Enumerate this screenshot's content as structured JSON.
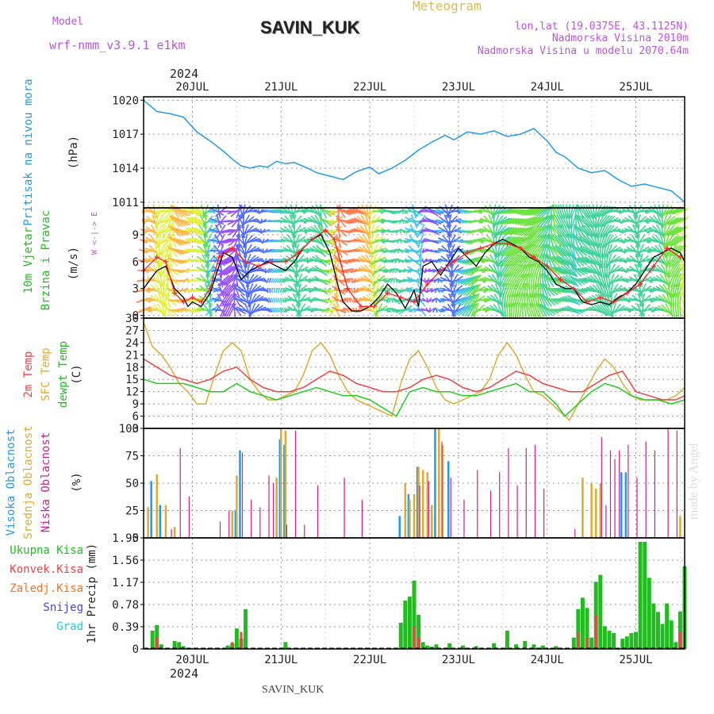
{
  "header": {
    "meteogram_label": "Meteogram",
    "station_name": "SAVIN_KUK",
    "model_label": "Model",
    "model_name": "wrf-nmm_v3.9.1 e1km",
    "lonlat": "lon,lat (19.0375E, 43.1125N)",
    "elevation": "Nadmorska Visina 2010m",
    "model_elevation": "Nadmorska Visina u modelu 2070.64m",
    "footer_station": "SAVIN_KUK",
    "credit": "made by Angel",
    "year": "2024"
  },
  "chart_data": [
    {
      "type": "line",
      "id": "pressure",
      "ylabel": "Pritisak na nivou mora",
      "unit": "(hPa)",
      "yticks": [
        1011,
        1014,
        1017,
        1020
      ],
      "ylim": [
        1010.5,
        1020.3
      ],
      "x_days": [
        "20JUL",
        "21JUL",
        "22JUL",
        "23JUL",
        "24JUL",
        "25JUL"
      ],
      "x_range_days": [
        -0.55,
        5.55
      ],
      "series": [
        {
          "color": "#2299ee",
          "x": [
            -0.55,
            -0.4,
            -0.25,
            -0.1,
            0.05,
            0.2,
            0.35,
            0.45,
            0.55,
            0.65,
            0.75,
            0.85,
            0.95,
            1.05,
            1.15,
            1.3,
            1.4,
            1.55,
            1.7,
            1.85,
            2.0,
            2.1,
            2.25,
            2.4,
            2.55,
            2.7,
            2.85,
            2.95,
            3.1,
            3.25,
            3.4,
            3.55,
            3.7,
            3.85,
            4.0,
            4.1,
            4.2,
            4.35,
            4.5,
            4.65,
            4.8,
            4.95,
            5.1,
            5.25,
            5.4,
            5.55
          ],
          "values": [
            1020.0,
            1019.0,
            1018.8,
            1018.5,
            1017.2,
            1016.4,
            1015.5,
            1014.8,
            1014.2,
            1014.0,
            1014.2,
            1014.1,
            1014.6,
            1014.4,
            1014.5,
            1014.0,
            1013.6,
            1013.3,
            1013.0,
            1013.7,
            1014.1,
            1013.5,
            1014.0,
            1014.7,
            1015.6,
            1016.3,
            1016.9,
            1016.5,
            1017.2,
            1017.0,
            1017.3,
            1016.8,
            1017.0,
            1017.5,
            1016.4,
            1015.4,
            1015.0,
            1014.0,
            1013.6,
            1013.8,
            1013.0,
            1012.4,
            1012.6,
            1012.3,
            1012.0,
            1011.0
          ]
        }
      ]
    },
    {
      "type": "line",
      "id": "wind",
      "ylabel_lines": [
        "10m Vjetar",
        "Brzina i Pravac"
      ],
      "unit": "(m/s)",
      "compass": "W <-|-> E",
      "yticks": [
        0,
        3,
        6,
        9
      ],
      "ylim": [
        -0.3,
        12
      ],
      "series": [
        {
          "color": "#000000",
          "x": [
            -0.55,
            -0.4,
            -0.3,
            -0.2,
            -0.1,
            -0.05,
            0.0,
            0.1,
            0.2,
            0.3,
            0.35,
            0.45,
            0.55,
            0.65,
            0.75,
            0.85,
            0.95,
            1.05,
            1.15,
            1.25,
            1.35,
            1.45,
            1.55,
            1.65,
            1.7,
            1.8,
            1.9,
            2.0,
            2.1,
            2.2,
            2.3,
            2.4,
            2.5,
            2.55,
            2.6,
            2.7,
            2.8,
            2.9,
            3.0,
            3.1,
            3.2,
            3.3,
            3.4,
            3.5,
            3.6,
            3.7,
            3.8,
            3.9,
            4.0,
            4.1,
            4.2,
            4.3,
            4.4,
            4.5,
            4.6,
            4.7,
            4.8,
            4.9,
            5.0,
            5.1,
            5.2,
            5.3,
            5.4,
            5.5,
            5.55
          ],
          "values": [
            3.0,
            5.0,
            5.5,
            3.0,
            2.0,
            1.0,
            1.5,
            1.0,
            2.5,
            5.5,
            7.0,
            6.5,
            4.0,
            5.0,
            5.5,
            6.0,
            5.5,
            5.0,
            6.0,
            7.5,
            8.5,
            9.0,
            7.0,
            3.0,
            1.5,
            0.5,
            0.5,
            1.0,
            2.0,
            3.5,
            2.5,
            0.8,
            2.8,
            1.0,
            5.5,
            6.0,
            4.5,
            6.0,
            7.5,
            6.5,
            5.5,
            7.0,
            8.0,
            8.5,
            8.0,
            7.5,
            6.5,
            6.0,
            5.0,
            3.5,
            3.0,
            3.0,
            1.5,
            1.2,
            1.5,
            1.2,
            2.0,
            2.5,
            3.5,
            5.0,
            6.5,
            7.0,
            7.5,
            7.0,
            6.0
          ]
        },
        {
          "color": "#ff2222",
          "x": [
            -0.55,
            -0.4,
            -0.3,
            -0.2,
            -0.1,
            0.0,
            0.1,
            0.2,
            0.3,
            0.45,
            0.6,
            0.75,
            0.9,
            1.05,
            1.2,
            1.35,
            1.5,
            1.6,
            1.75,
            1.9,
            2.05,
            2.2,
            2.35,
            2.5,
            2.65,
            2.8,
            2.95,
            3.1,
            3.25,
            3.4,
            3.55,
            3.7,
            3.85,
            4.0,
            4.15,
            4.3,
            4.45,
            4.6,
            4.75,
            4.9,
            5.05,
            5.2,
            5.35,
            5.5
          ],
          "values": [
            5.0,
            6.5,
            6.0,
            2.5,
            1.5,
            2.0,
            1.5,
            3.0,
            6.5,
            7.5,
            6.0,
            5.5,
            6.0,
            6.0,
            7.0,
            8.5,
            9.5,
            8.5,
            3.0,
            1.0,
            1.0,
            2.5,
            2.0,
            1.5,
            3.5,
            5.0,
            6.0,
            7.0,
            7.5,
            8.0,
            8.0,
            7.5,
            6.5,
            5.5,
            4.0,
            3.0,
            1.5,
            2.0,
            1.5,
            2.5,
            3.5,
            5.5,
            7.5,
            6.5
          ]
        }
      ]
    },
    {
      "type": "line",
      "id": "temperature",
      "ylabel_lines": [
        "2m Temp",
        "SFC Temp",
        "dewpt Temp"
      ],
      "unit": "(C)",
      "yticks": [
        3,
        6,
        9,
        12,
        15,
        18,
        21,
        24,
        27,
        30
      ],
      "ylim": [
        3,
        30
      ],
      "series": [
        {
          "name": "SFC Temp",
          "color": "#ddaa33",
          "x": [
            -0.55,
            -0.45,
            -0.35,
            -0.25,
            -0.15,
            -0.05,
            0.05,
            0.15,
            0.25,
            0.35,
            0.45,
            0.55,
            0.65,
            0.75,
            0.85,
            0.95,
            1.05,
            1.15,
            1.25,
            1.35,
            1.45,
            1.55,
            1.65,
            1.75,
            1.85,
            1.95,
            2.05,
            2.15,
            2.25,
            2.35,
            2.45,
            2.55,
            2.65,
            2.75,
            2.85,
            2.95,
            3.05,
            3.15,
            3.25,
            3.35,
            3.45,
            3.55,
            3.65,
            3.75,
            3.85,
            3.95,
            4.05,
            4.15,
            4.25,
            4.35,
            4.45,
            4.55,
            4.65,
            4.75,
            4.85,
            4.95,
            5.05,
            5.15,
            5.25,
            5.35,
            5.45,
            5.55
          ],
          "values": [
            29,
            23,
            21,
            18,
            14,
            12,
            9,
            9,
            16,
            22,
            24,
            22,
            15,
            12,
            10,
            10,
            11,
            12,
            16,
            22,
            24,
            21,
            16,
            12,
            10,
            9,
            8,
            7,
            6,
            14,
            20,
            22,
            18,
            13,
            10,
            9,
            10,
            11,
            12,
            15,
            21,
            24,
            21,
            16,
            12,
            11,
            9,
            7,
            5,
            9,
            13,
            17,
            20,
            18,
            14,
            11,
            10,
            10,
            10,
            10,
            11,
            13
          ]
        },
        {
          "name": "2m Temp",
          "color": "#ee4444",
          "x": [
            -0.55,
            -0.4,
            -0.25,
            -0.1,
            0.05,
            0.2,
            0.35,
            0.5,
            0.65,
            0.8,
            0.95,
            1.1,
            1.25,
            1.4,
            1.55,
            1.7,
            1.85,
            2.0,
            2.15,
            2.3,
            2.45,
            2.6,
            2.75,
            2.9,
            3.05,
            3.2,
            3.35,
            3.5,
            3.65,
            3.8,
            3.95,
            4.1,
            4.25,
            4.4,
            4.55,
            4.7,
            4.85,
            5.0,
            5.15,
            5.3,
            5.45,
            5.55
          ],
          "values": [
            20,
            18,
            16,
            15,
            14,
            15,
            17,
            18,
            15,
            13,
            12,
            12,
            13,
            15,
            17,
            16,
            14,
            13,
            12,
            12,
            13,
            15,
            16,
            15,
            13,
            12,
            13,
            15,
            17,
            16,
            14,
            13,
            12,
            12,
            14,
            16,
            17,
            12,
            11,
            10,
            10,
            11
          ]
        },
        {
          "name": "dewpt Temp",
          "color": "#22cc22",
          "x": [
            -0.55,
            -0.4,
            -0.25,
            -0.1,
            0.05,
            0.2,
            0.35,
            0.5,
            0.65,
            0.8,
            0.95,
            1.1,
            1.25,
            1.4,
            1.55,
            1.7,
            1.85,
            2.0,
            2.15,
            2.3,
            2.45,
            2.6,
            2.75,
            2.9,
            3.05,
            3.2,
            3.35,
            3.5,
            3.65,
            3.8,
            3.95,
            4.1,
            4.2,
            4.35,
            4.5,
            4.65,
            4.8,
            4.95,
            5.1,
            5.25,
            5.4,
            5.55
          ],
          "values": [
            15,
            14,
            14,
            14,
            13,
            12,
            12,
            14,
            12,
            11,
            10,
            11,
            12,
            13,
            12,
            11,
            11,
            10,
            8,
            6,
            12,
            13,
            12,
            12,
            11,
            11,
            12,
            13,
            14,
            12,
            12,
            9,
            6,
            9,
            12,
            14,
            13,
            11,
            10,
            10,
            9,
            10
          ]
        }
      ]
    },
    {
      "type": "bar",
      "id": "clouds",
      "ylabel_lines": [
        "Visoka Oblacnost",
        "Srednja Oblacnost",
        "Niska Oblacnost"
      ],
      "unit": "(%)",
      "yticks": [
        0,
        25,
        50,
        75,
        100
      ],
      "ylim": [
        0,
        100
      ],
      "series": [
        {
          "name": "Visoka Oblacnost",
          "color": "#2299ee",
          "x": [
            -0.45,
            -0.35,
            0.5,
            0.55,
            1.0,
            1.05,
            2.35,
            2.45,
            2.55,
            2.75,
            2.9,
            4.85,
            4.9
          ],
          "values": [
            52,
            30,
            25,
            80,
            90,
            85,
            20,
            40,
            65,
            100,
            70,
            60,
            60
          ]
        },
        {
          "name": "Srednja Oblacnost",
          "color": "#ddaa33",
          "x": [
            -0.5,
            -0.4,
            -0.3,
            -0.2,
            0.45,
            0.5,
            0.95,
            1.0,
            1.05,
            2.4,
            2.45,
            2.5,
            2.55,
            2.6,
            2.65,
            2.7,
            2.78,
            2.82,
            4.4,
            4.5,
            4.55,
            4.6,
            5.5
          ],
          "values": [
            28,
            58,
            30,
            10,
            25,
            57,
            55,
            100,
            98,
            50,
            35,
            40,
            65,
            62,
            60,
            30,
            100,
            85,
            55,
            50,
            45,
            50,
            20
          ]
        },
        {
          "name": "Niska Oblacnost",
          "color": "#cc2288",
          "x": [
            -0.25,
            -0.15,
            -0.05,
            0.3,
            0.4,
            0.55,
            0.65,
            0.75,
            0.85,
            0.9,
            1.05,
            1.15,
            1.25,
            1.4,
            1.7,
            1.9,
            2.55,
            2.65,
            2.8,
            2.9,
            3.05,
            3.2,
            3.35,
            3.45,
            3.55,
            3.65,
            3.75,
            3.85,
            3.95,
            4.3,
            4.6,
            4.65,
            4.7,
            4.75,
            4.8,
            4.9,
            5.0,
            5.1,
            5.2,
            5.35,
            5.45
          ],
          "values": [
            8,
            82,
            38,
            15,
            25,
            78,
            35,
            28,
            57,
            50,
            12,
            98,
            12,
            48,
            55,
            35,
            48,
            52,
            88,
            55,
            35,
            62,
            43,
            60,
            82,
            48,
            82,
            85,
            45,
            8,
            92,
            30,
            80,
            72,
            80,
            85,
            55,
            88,
            80,
            100,
            98
          ]
        }
      ]
    },
    {
      "type": "bar",
      "id": "precip",
      "ylabel": "1hr Precip (mm)",
      "yticks": [
        0,
        0.39,
        0.78,
        1.17,
        1.56,
        1.95
      ],
      "ylim": [
        0,
        1.95
      ],
      "legend": [
        {
          "name": "Ukupna Kisa",
          "color": "#22bb22"
        },
        {
          "name": "Konvek.Kisa",
          "color": "#ee4444"
        },
        {
          "name": "Zaledj.Kisa",
          "color": "#ee7722"
        },
        {
          "name": "Snijeg",
          "color": "#4444dd"
        },
        {
          "name": "Grad",
          "color": "#22cccc"
        }
      ],
      "series": [
        {
          "name": "Ukupna Kisa",
          "color": "#22bb22",
          "x": [
            -0.45,
            -0.4,
            -0.35,
            -0.2,
            -0.15,
            -0.1,
            0.4,
            0.45,
            0.5,
            0.55,
            0.6,
            1.05,
            2.35,
            2.4,
            2.45,
            2.5,
            2.55,
            2.6,
            2.65,
            2.7,
            2.75,
            2.9,
            3.05,
            3.2,
            3.4,
            3.55,
            3.65,
            3.75,
            3.85,
            3.95,
            4.1,
            4.3,
            4.35,
            4.4,
            4.45,
            4.5,
            4.55,
            4.6,
            4.65,
            4.7,
            4.75,
            4.85,
            4.9,
            4.95,
            5.0,
            5.05,
            5.1,
            5.15,
            5.2,
            5.25,
            5.3,
            5.35,
            5.4,
            5.45,
            5.5,
            5.55
          ],
          "values": [
            0.32,
            0.42,
            0.08,
            0.14,
            0.12,
            0.05,
            0.06,
            0.1,
            0.36,
            0.18,
            0.7,
            0.12,
            0.46,
            0.85,
            0.92,
            1.2,
            0.6,
            0.12,
            0.06,
            0.04,
            0.08,
            0.1,
            0.06,
            0.05,
            0.1,
            0.32,
            0.08,
            0.14,
            0.08,
            0.06,
            0.05,
            0.2,
            0.7,
            0.9,
            0.72,
            0.2,
            1.18,
            1.3,
            0.4,
            0.32,
            0.28,
            0.18,
            0.22,
            0.28,
            0.3,
            1.88,
            1.88,
            1.25,
            0.8,
            0.65,
            0.44,
            0.8,
            0.5,
            0.12,
            0.66,
            1.45
          ]
        },
        {
          "name": "Konvek.Kisa",
          "color": "#ee4444",
          "x": [
            -0.4,
            0.45,
            0.55,
            2.5,
            2.55,
            4.35,
            4.45,
            4.55,
            5.5
          ],
          "values": [
            0.2,
            0.12,
            0.3,
            0.4,
            0.2,
            0.3,
            0.2,
            0.6,
            0.3
          ]
        },
        {
          "name": "Zaledj.Kisa",
          "color": "#ee7722",
          "x": [],
          "values": []
        },
        {
          "name": "Snijeg",
          "color": "#4444dd",
          "x": [],
          "values": []
        },
        {
          "name": "Grad",
          "color": "#22cccc",
          "x": [],
          "values": []
        }
      ]
    }
  ]
}
